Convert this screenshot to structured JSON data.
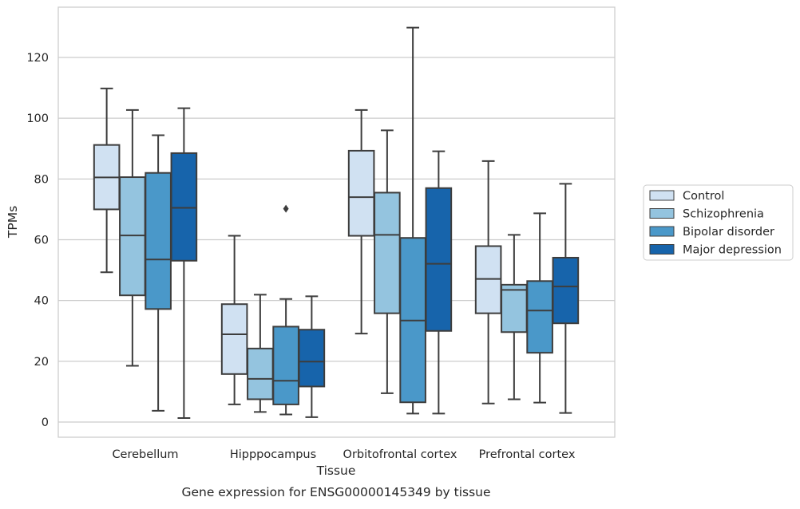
{
  "chart_data": {
    "type": "box",
    "title": "",
    "caption": "Gene expression for ENSG00000145349 by tissue",
    "xlabel": "Tissue",
    "ylabel": "TPMs",
    "ylim": [
      -5,
      136
    ],
    "yticks": [
      0,
      20,
      40,
      60,
      80,
      100,
      120
    ],
    "grid": true,
    "legend_position": "right",
    "categories": [
      "Cerebellum",
      "Hipppocampus",
      "Orbitofrontal cortex",
      "Prefrontal cortex"
    ],
    "series": [
      {
        "name": "Control",
        "color": "#d0e1f2",
        "boxes": [
          {
            "whisker_low": 49.3,
            "q1": 70.0,
            "median": 80.5,
            "q3": 91.2,
            "whisker_high": 109.8,
            "outliers": []
          },
          {
            "whisker_low": 5.8,
            "q1": 15.8,
            "median": 28.9,
            "q3": 38.8,
            "whisker_high": 61.3,
            "outliers": []
          },
          {
            "whisker_low": 29.1,
            "q1": 61.3,
            "median": 74.0,
            "q3": 89.3,
            "whisker_high": 102.7,
            "outliers": []
          },
          {
            "whisker_low": 6.1,
            "q1": 35.8,
            "median": 47.1,
            "q3": 57.9,
            "whisker_high": 85.9,
            "outliers": []
          }
        ]
      },
      {
        "name": "Schizophrenia",
        "color": "#94c4df",
        "boxes": [
          {
            "whisker_low": 18.5,
            "q1": 41.7,
            "median": 61.4,
            "q3": 80.6,
            "whisker_high": 102.7,
            "outliers": []
          },
          {
            "whisker_low": 3.3,
            "q1": 7.5,
            "median": 14.2,
            "q3": 24.2,
            "whisker_high": 41.9,
            "outliers": []
          },
          {
            "whisker_low": 9.5,
            "q1": 35.8,
            "median": 61.6,
            "q3": 75.5,
            "whisker_high": 96.0,
            "outliers": []
          },
          {
            "whisker_low": 7.5,
            "q1": 29.6,
            "median": 43.5,
            "q3": 45.2,
            "whisker_high": 61.6,
            "outliers": []
          }
        ]
      },
      {
        "name": "Bipolar disorder",
        "color": "#4a98c9",
        "boxes": [
          {
            "whisker_low": 3.7,
            "q1": 37.2,
            "median": 53.5,
            "q3": 82.0,
            "whisker_high": 94.4,
            "outliers": []
          },
          {
            "whisker_low": 2.5,
            "q1": 5.8,
            "median": 13.6,
            "q3": 31.4,
            "whisker_high": 40.5,
            "outliers": [
              70.2
            ]
          },
          {
            "whisker_low": 2.8,
            "q1": 6.5,
            "median": 33.4,
            "q3": 60.6,
            "whisker_high": 129.8,
            "outliers": []
          },
          {
            "whisker_low": 6.4,
            "q1": 22.8,
            "median": 36.7,
            "q3": 46.4,
            "whisker_high": 68.7,
            "outliers": []
          }
        ]
      },
      {
        "name": "Major depression",
        "color": "#1764ab",
        "boxes": [
          {
            "whisker_low": 1.3,
            "q1": 53.1,
            "median": 70.5,
            "q3": 88.5,
            "whisker_high": 103.3,
            "outliers": []
          },
          {
            "whisker_low": 1.6,
            "q1": 11.7,
            "median": 19.9,
            "q3": 30.4,
            "whisker_high": 41.4,
            "outliers": []
          },
          {
            "whisker_low": 2.8,
            "q1": 30.0,
            "median": 52.1,
            "q3": 77.0,
            "whisker_high": 89.1,
            "outliers": []
          },
          {
            "whisker_low": 3.0,
            "q1": 32.5,
            "median": 44.6,
            "q3": 54.1,
            "whisker_high": 78.4,
            "outliers": []
          }
        ]
      }
    ]
  }
}
